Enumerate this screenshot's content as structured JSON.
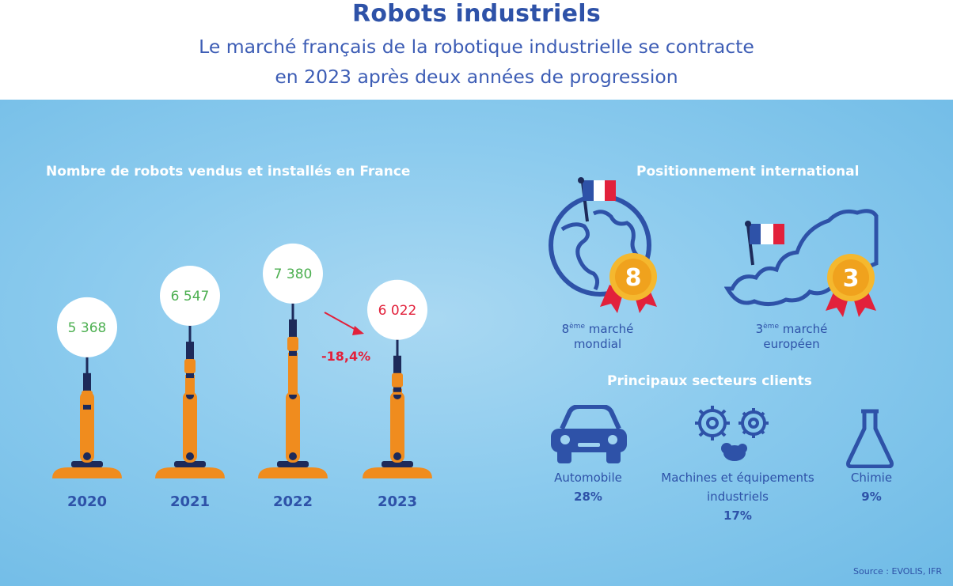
{
  "header": {
    "title": "Robots industriels",
    "subtitle_line1": "Le marché français de la robotique industrielle se contracte",
    "subtitle_line2": "en 2023 après deux années de progression"
  },
  "chart_data": {
    "type": "bar",
    "title": "Nombre de robots vendus et installés en France",
    "categories": [
      "2020",
      "2021",
      "2022",
      "2023"
    ],
    "values": [
      5368,
      6547,
      7380,
      6022
    ],
    "value_labels": [
      "5 368",
      "6 547",
      "7 380",
      "6 022"
    ],
    "value_colors": [
      "#4caf50",
      "#4caf50",
      "#4caf50",
      "#e2213b"
    ],
    "annotation": "-18,4%"
  },
  "positioning": {
    "title": "Positionnement international",
    "world_rank": "8",
    "world_sup": "ème",
    "world_line1": "marché",
    "world_line2": "mondial",
    "europe_rank": "3",
    "europe_sup": "ème",
    "europe_line1": "marché",
    "europe_line2": "européen"
  },
  "sectors": {
    "title": "Principaux secteurs clients",
    "items": [
      {
        "label": "Automobile",
        "label2": "",
        "pct": "28%",
        "icon": "car-icon"
      },
      {
        "label": "Machines et équipements",
        "label2": "industriels",
        "pct": "17%",
        "icon": "gears-icon"
      },
      {
        "label": "Chimie",
        "label2": "",
        "pct": "9%",
        "icon": "flask-icon"
      }
    ]
  },
  "source": "Source : EVOLIS, IFR",
  "colors": {
    "accent": "#2e52a8",
    "increase": "#4caf50",
    "decrease": "#e2213b",
    "robot": "#f08c1e",
    "medal": "#f5b82e"
  }
}
